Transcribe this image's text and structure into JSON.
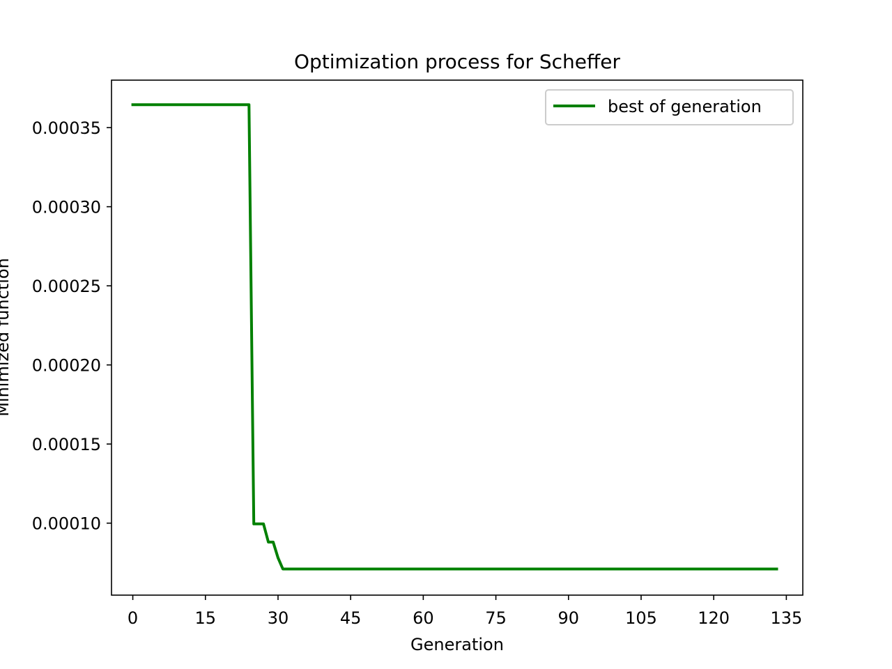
{
  "chart_data": {
    "type": "line",
    "title": "Optimization process for Scheffer",
    "xlabel": "Generation",
    "ylabel": "Minimized function",
    "xlim": [
      -4.4,
      138.4
    ],
    "ylim": [
      5.45e-05,
      0.00038
    ],
    "xticks": [
      0,
      15,
      30,
      45,
      60,
      75,
      90,
      105,
      120,
      135
    ],
    "xtick_labels": [
      "0",
      "15",
      "30",
      "45",
      "60",
      "75",
      "90",
      "105",
      "120",
      "135"
    ],
    "yticks": [
      0.0001,
      0.00015,
      0.0002,
      0.00025,
      0.0003,
      0.00035
    ],
    "ytick_labels": [
      "0.00010",
      "0.00015",
      "0.00020",
      "0.00025",
      "0.00030",
      "0.00035"
    ],
    "grid": false,
    "legend": {
      "position": "top-right"
    },
    "series": [
      {
        "name": "best of generation",
        "color": "#008000",
        "x": [
          0,
          24,
          25,
          26,
          27,
          28,
          29,
          30,
          31,
          133
        ],
        "y": [
          0.0003645,
          0.0003645,
          9.95e-05,
          9.95e-05,
          9.95e-05,
          8.8e-05,
          8.8e-05,
          7.8e-05,
          7.1e-05,
          7.1e-05
        ]
      }
    ]
  }
}
